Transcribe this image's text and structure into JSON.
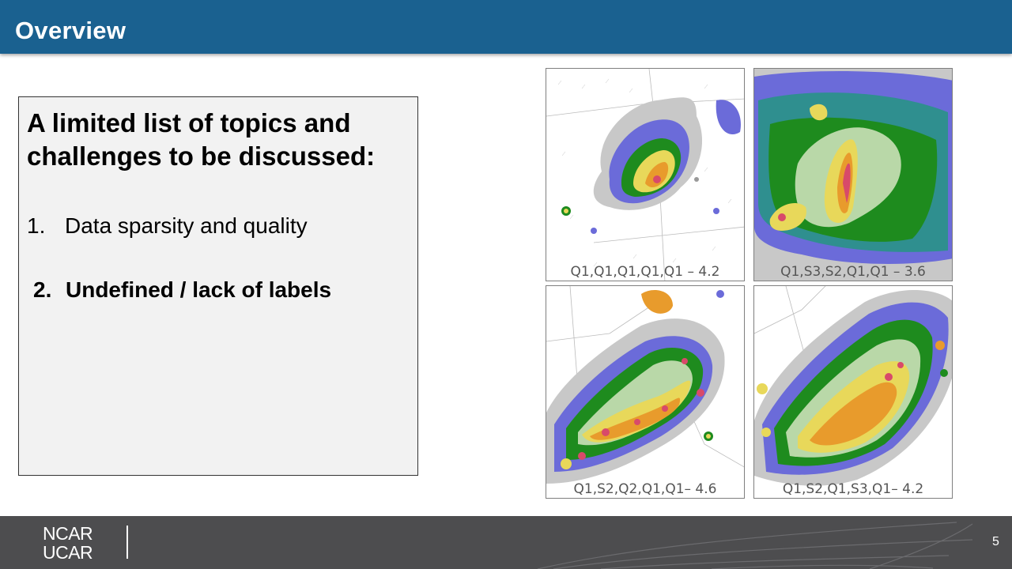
{
  "slide": {
    "title": "Overview",
    "textbox": {
      "heading": "A limited list of topics and challenges to be discussed:",
      "items": [
        {
          "number": "1.",
          "text": "Data sparsity and quality"
        },
        {
          "number": "2.",
          "text": "Undefined / lack of labels"
        }
      ]
    },
    "figures": [
      {
        "caption": "Q1,Q1,Q1,Q1,Q1  – 4.2"
      },
      {
        "caption": "Q1,S3,S2,Q1,Q1 – 3.6"
      },
      {
        "caption": "Q1,S2,Q2,Q1,Q1– 4.6"
      },
      {
        "caption": "Q1,S2,Q1,S3,Q1– 4.2"
      }
    ],
    "footer": {
      "logo_line1": "NCAR",
      "logo_line2": "UCAR",
      "page_number": "5"
    }
  },
  "colors": {
    "header": "#1a6190",
    "footer": "#4d4d4f",
    "textbox_bg": "#f2f2f2"
  }
}
